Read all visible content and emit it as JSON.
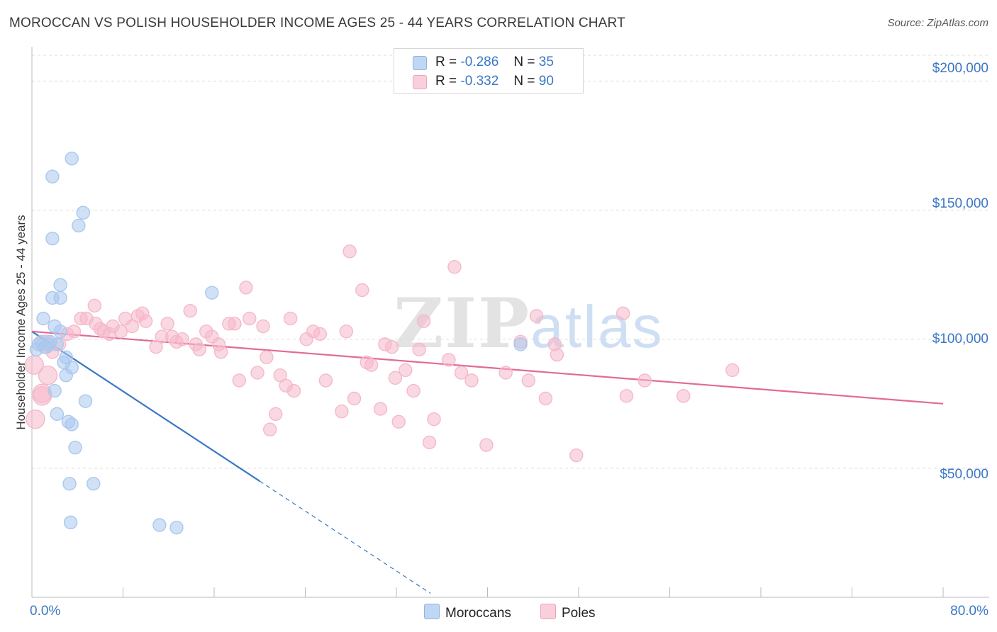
{
  "title": "MOROCCAN VS POLISH HOUSEHOLDER INCOME AGES 25 - 44 YEARS CORRELATION CHART",
  "source": "Source: ZipAtlas.com",
  "watermark": {
    "zip": "ZIP",
    "atlas": "atlas"
  },
  "legend": {
    "r_label": "R =",
    "n_label": "N =",
    "moroccans": {
      "r": "-0.286",
      "n": "35",
      "color": "#a9c8ef"
    },
    "poles": {
      "r": "-0.332",
      "n": "90",
      "color": "#f5b8cb"
    }
  },
  "bottom_legend": {
    "moroccans": "Moroccans",
    "poles": "Poles"
  },
  "chart_data": {
    "type": "scatter",
    "title": "MOROCCAN VS POLISH HOUSEHOLDER INCOME AGES 25 - 44 YEARS CORRELATION CHART",
    "xlabel": "",
    "ylabel": "Householder Income Ages 25 - 44 years",
    "xlim": [
      0,
      80
    ],
    "ylim": [
      0,
      210000
    ],
    "x_tick_labels": [
      "0.0%",
      "80.0%"
    ],
    "y_ticks": [
      50000,
      100000,
      150000,
      200000
    ],
    "y_tick_labels": [
      "$50,000",
      "$100,000",
      "$150,000",
      "$200,000"
    ],
    "grid": true,
    "series": [
      {
        "name": "Moroccans",
        "color": "#3a77c6",
        "fill": "#a9c8ef",
        "points": [
          {
            "x": 0.4,
            "y": 96000
          },
          {
            "x": 0.6,
            "y": 98000
          },
          {
            "x": 0.8,
            "y": 99000
          },
          {
            "x": 1.0,
            "y": 108000
          },
          {
            "x": 1.2,
            "y": 97000
          },
          {
            "x": 1.4,
            "y": 98000
          },
          {
            "x": 1.6,
            "y": 99000
          },
          {
            "x": 1.8,
            "y": 116000
          },
          {
            "x": 1.8,
            "y": 139000
          },
          {
            "x": 2.0,
            "y": 105000
          },
          {
            "x": 2.0,
            "y": 80000
          },
          {
            "x": 2.2,
            "y": 98000
          },
          {
            "x": 1.8,
            "y": 163000
          },
          {
            "x": 2.2,
            "y": 71000
          },
          {
            "x": 2.5,
            "y": 103000
          },
          {
            "x": 2.5,
            "y": 116000
          },
          {
            "x": 2.5,
            "y": 121000
          },
          {
            "x": 2.8,
            "y": 91000
          },
          {
            "x": 3.0,
            "y": 93000
          },
          {
            "x": 3.0,
            "y": 86000
          },
          {
            "x": 3.2,
            "y": 68000
          },
          {
            "x": 3.3,
            "y": 44000
          },
          {
            "x": 3.4,
            "y": 29000
          },
          {
            "x": 3.5,
            "y": 67000
          },
          {
            "x": 3.5,
            "y": 89000
          },
          {
            "x": 3.5,
            "y": 170000
          },
          {
            "x": 3.8,
            "y": 58000
          },
          {
            "x": 4.1,
            "y": 144000
          },
          {
            "x": 4.5,
            "y": 149000
          },
          {
            "x": 4.7,
            "y": 76000
          },
          {
            "x": 5.4,
            "y": 44000
          },
          {
            "x": 11.2,
            "y": 28000
          },
          {
            "x": 12.7,
            "y": 27000
          },
          {
            "x": 15.8,
            "y": 118000
          },
          {
            "x": 42.9,
            "y": 98000
          }
        ]
      },
      {
        "name": "Poles",
        "color": "#e26a96",
        "fill": "#f5b8cb",
        "points": [
          {
            "x": 0.2,
            "y": 90000
          },
          {
            "x": 0.3,
            "y": 69000
          },
          {
            "x": 0.9,
            "y": 78000
          },
          {
            "x": 1.2,
            "y": 98000
          },
          {
            "x": 1.4,
            "y": 86000
          },
          {
            "x": 1.8,
            "y": 95000
          },
          {
            "x": 2.4,
            "y": 98000
          },
          {
            "x": 3.1,
            "y": 102000
          },
          {
            "x": 3.7,
            "y": 103000
          },
          {
            "x": 4.3,
            "y": 108000
          },
          {
            "x": 4.8,
            "y": 108000
          },
          {
            "x": 5.5,
            "y": 113000
          },
          {
            "x": 5.6,
            "y": 106000
          },
          {
            "x": 6.0,
            "y": 104000
          },
          {
            "x": 6.3,
            "y": 103000
          },
          {
            "x": 6.8,
            "y": 102000
          },
          {
            "x": 7.1,
            "y": 105000
          },
          {
            "x": 7.8,
            "y": 103000
          },
          {
            "x": 8.2,
            "y": 108000
          },
          {
            "x": 8.8,
            "y": 105000
          },
          {
            "x": 9.3,
            "y": 109000
          },
          {
            "x": 9.7,
            "y": 110000
          },
          {
            "x": 10.0,
            "y": 107000
          },
          {
            "x": 10.9,
            "y": 97000
          },
          {
            "x": 11.4,
            "y": 101000
          },
          {
            "x": 11.9,
            "y": 106000
          },
          {
            "x": 12.3,
            "y": 101000
          },
          {
            "x": 12.7,
            "y": 99000
          },
          {
            "x": 13.2,
            "y": 100000
          },
          {
            "x": 13.9,
            "y": 111000
          },
          {
            "x": 14.4,
            "y": 98000
          },
          {
            "x": 14.7,
            "y": 96000
          },
          {
            "x": 15.3,
            "y": 103000
          },
          {
            "x": 15.8,
            "y": 101000
          },
          {
            "x": 16.4,
            "y": 98000
          },
          {
            "x": 16.6,
            "y": 95000
          },
          {
            "x": 17.3,
            "y": 106000
          },
          {
            "x": 17.8,
            "y": 106000
          },
          {
            "x": 18.2,
            "y": 84000
          },
          {
            "x": 18.8,
            "y": 120000
          },
          {
            "x": 19.1,
            "y": 108000
          },
          {
            "x": 19.8,
            "y": 87000
          },
          {
            "x": 20.3,
            "y": 105000
          },
          {
            "x": 20.6,
            "y": 93000
          },
          {
            "x": 20.9,
            "y": 65000
          },
          {
            "x": 21.4,
            "y": 71000
          },
          {
            "x": 21.8,
            "y": 86000
          },
          {
            "x": 22.3,
            "y": 82000
          },
          {
            "x": 22.7,
            "y": 108000
          },
          {
            "x": 23.0,
            "y": 80000
          },
          {
            "x": 24.1,
            "y": 100000
          },
          {
            "x": 24.7,
            "y": 103000
          },
          {
            "x": 25.3,
            "y": 102000
          },
          {
            "x": 25.8,
            "y": 84000
          },
          {
            "x": 27.2,
            "y": 72000
          },
          {
            "x": 27.6,
            "y": 103000
          },
          {
            "x": 27.9,
            "y": 134000
          },
          {
            "x": 28.3,
            "y": 77000
          },
          {
            "x": 29.0,
            "y": 119000
          },
          {
            "x": 29.4,
            "y": 91000
          },
          {
            "x": 29.8,
            "y": 90000
          },
          {
            "x": 30.6,
            "y": 73000
          },
          {
            "x": 31.0,
            "y": 98000
          },
          {
            "x": 31.6,
            "y": 97000
          },
          {
            "x": 31.9,
            "y": 85000
          },
          {
            "x": 32.2,
            "y": 68000
          },
          {
            "x": 32.8,
            "y": 88000
          },
          {
            "x": 33.5,
            "y": 80000
          },
          {
            "x": 34.0,
            "y": 96000
          },
          {
            "x": 34.4,
            "y": 107000
          },
          {
            "x": 34.9,
            "y": 60000
          },
          {
            "x": 35.3,
            "y": 69000
          },
          {
            "x": 36.6,
            "y": 92000
          },
          {
            "x": 37.1,
            "y": 128000
          },
          {
            "x": 37.7,
            "y": 87000
          },
          {
            "x": 38.6,
            "y": 84000
          },
          {
            "x": 39.9,
            "y": 59000
          },
          {
            "x": 41.6,
            "y": 87000
          },
          {
            "x": 42.9,
            "y": 99000
          },
          {
            "x": 43.6,
            "y": 84000
          },
          {
            "x": 44.3,
            "y": 109000
          },
          {
            "x": 45.1,
            "y": 77000
          },
          {
            "x": 45.9,
            "y": 98000
          },
          {
            "x": 46.1,
            "y": 94000
          },
          {
            "x": 47.8,
            "y": 55000
          },
          {
            "x": 51.9,
            "y": 110000
          },
          {
            "x": 52.2,
            "y": 78000
          },
          {
            "x": 53.8,
            "y": 84000
          },
          {
            "x": 57.2,
            "y": 78000
          },
          {
            "x": 61.5,
            "y": 88000
          },
          {
            "x": 0.9,
            "y": 79000
          }
        ]
      }
    ],
    "trend_lines": [
      {
        "series": "Moroccans",
        "x0": 0.0,
        "y0": 103000,
        "x1": 20.0,
        "y1": 45000,
        "dashed_to_x": 35.0
      },
      {
        "series": "Poles",
        "x0": 0.0,
        "y0": 103000,
        "x1": 80.0,
        "y1": 75000
      }
    ]
  }
}
